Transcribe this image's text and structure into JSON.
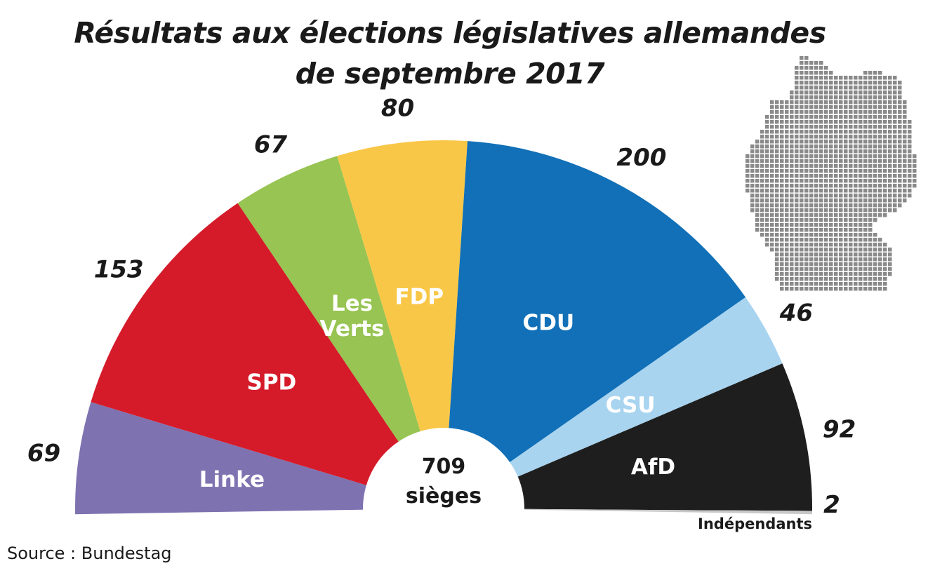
{
  "title": {
    "line1": "Résultats aux élections législatives allemandes",
    "line2": "de septembre 2017"
  },
  "source": "Source : Bundestag",
  "chart_data": {
    "type": "pie",
    "subtype": "hemicycle",
    "title": "Résultats aux élections législatives allemandes de septembre 2017",
    "total": {
      "value": "709",
      "unit": "sièges"
    },
    "parties": [
      {
        "name": "Linke",
        "seats": 69,
        "color": "#7f72b0",
        "label_color": "#ffffff"
      },
      {
        "name": "SPD",
        "seats": 153,
        "color": "#d51b2a",
        "label_color": "#ffffff"
      },
      {
        "name": "Les Verts",
        "name_lines": [
          "Les",
          "Verts"
        ],
        "seats": 67,
        "color": "#97c452",
        "label_color": "#ffffff"
      },
      {
        "name": "FDP",
        "seats": 80,
        "color": "#f9c747",
        "label_color": "#ffffff"
      },
      {
        "name": "CDU",
        "seats": 200,
        "color": "#1170b7",
        "label_color": "#ffffff"
      },
      {
        "name": "CSU",
        "seats": 46,
        "color": "#a8d4f0",
        "label_color": "#ffffff"
      },
      {
        "name": "AfD",
        "seats": 92,
        "color": "#1e1e1e",
        "label_color": "#ffffff"
      },
      {
        "name": "Indépendants",
        "seats": 2,
        "color": "#c8c8c8",
        "label_color": "#1a1a1a"
      }
    ],
    "map_color": "#8a8a8a"
  }
}
